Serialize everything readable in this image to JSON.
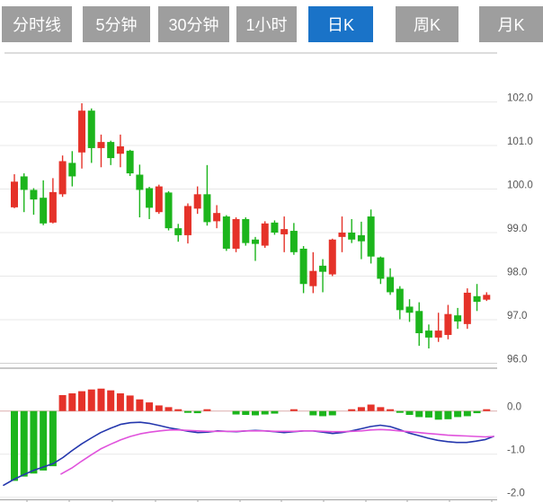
{
  "tabs": [
    {
      "label": "分时线",
      "active": false
    },
    {
      "label": "5分钟",
      "active": false
    },
    {
      "label": "30分钟",
      "active": false
    },
    {
      "label": "1小时",
      "active": false
    },
    {
      "label": "日K",
      "active": true
    },
    {
      "label": "周K",
      "active": false
    },
    {
      "label": "月K",
      "active": false
    }
  ],
  "colors": {
    "tab_bg": "#9e9e9e",
    "tab_active": "#1a73c8",
    "up": "#e53229",
    "down": "#1cb51c",
    "dif_line": "#2437ad",
    "dea_line": "#e052dc",
    "grid": "#e8e8e8",
    "grid_strong": "#b5b5b5",
    "zero_line": "#dcaeae",
    "axis_label": "#555555"
  },
  "chart_data": {
    "type": "candlestick",
    "title": "日K line chart with MACD",
    "price_axis": {
      "labels": [
        "102.0",
        "101.0",
        "100.0",
        "99.0",
        "98.0",
        "97.0",
        "96.0"
      ],
      "max": 102.0,
      "min": 96.0
    },
    "macd_axis": {
      "labels": [
        "0.0",
        "-1.0",
        "-2.0"
      ],
      "max": 0.0,
      "min": -2.0
    },
    "candles": [
      {
        "o": 99.58,
        "c": 100.17,
        "h": 100.34,
        "l": 99.56
      },
      {
        "o": 100.29,
        "c": 99.98,
        "h": 100.36,
        "l": 99.47
      },
      {
        "o": 99.98,
        "c": 99.76,
        "h": 100.02,
        "l": 99.41
      },
      {
        "o": 99.8,
        "c": 99.21,
        "h": 100.2,
        "l": 99.17
      },
      {
        "o": 99.23,
        "c": 99.93,
        "h": 100.25,
        "l": 99.21
      },
      {
        "o": 99.88,
        "c": 100.64,
        "h": 100.77,
        "l": 99.82
      },
      {
        "o": 100.6,
        "c": 100.29,
        "h": 100.87,
        "l": 100.06
      },
      {
        "o": 100.84,
        "c": 101.8,
        "h": 101.97,
        "l": 100.47
      },
      {
        "o": 101.8,
        "c": 100.94,
        "h": 101.85,
        "l": 100.6
      },
      {
        "o": 100.94,
        "c": 101.08,
        "h": 101.25,
        "l": 100.5
      },
      {
        "o": 101.08,
        "c": 100.71,
        "h": 101.11,
        "l": 100.55
      },
      {
        "o": 100.81,
        "c": 100.98,
        "h": 101.25,
        "l": 100.5
      },
      {
        "o": 100.88,
        "c": 100.36,
        "h": 100.9,
        "l": 100.3
      },
      {
        "o": 100.33,
        "c": 99.98,
        "h": 100.56,
        "l": 99.35
      },
      {
        "o": 100.02,
        "c": 99.57,
        "h": 100.05,
        "l": 99.31
      },
      {
        "o": 99.47,
        "c": 100.06,
        "h": 100.1,
        "l": 99.43
      },
      {
        "o": 99.92,
        "c": 99.1,
        "h": 99.95,
        "l": 99.05
      },
      {
        "o": 99.1,
        "c": 98.94,
        "h": 99.2,
        "l": 98.79
      },
      {
        "o": 98.94,
        "c": 99.61,
        "h": 99.67,
        "l": 98.75
      },
      {
        "o": 99.55,
        "c": 99.88,
        "h": 100.06,
        "l": 99.43
      },
      {
        "o": 99.88,
        "c": 99.24,
        "h": 100.55,
        "l": 99.16
      },
      {
        "o": 99.26,
        "c": 99.45,
        "h": 99.63,
        "l": 99.1
      },
      {
        "o": 99.37,
        "c": 98.63,
        "h": 99.4,
        "l": 98.58
      },
      {
        "o": 98.63,
        "c": 99.31,
        "h": 99.35,
        "l": 98.55
      },
      {
        "o": 99.31,
        "c": 98.76,
        "h": 99.35,
        "l": 98.7
      },
      {
        "o": 98.84,
        "c": 98.74,
        "h": 98.9,
        "l": 98.35
      },
      {
        "o": 98.7,
        "c": 99.21,
        "h": 99.26,
        "l": 98.65
      },
      {
        "o": 99.23,
        "c": 99.0,
        "h": 99.28,
        "l": 98.95
      },
      {
        "o": 98.96,
        "c": 99.08,
        "h": 99.37,
        "l": 98.55
      },
      {
        "o": 99.04,
        "c": 98.55,
        "h": 99.22,
        "l": 98.49
      },
      {
        "o": 98.63,
        "c": 97.82,
        "h": 98.69,
        "l": 97.61
      },
      {
        "o": 97.77,
        "c": 98.12,
        "h": 98.55,
        "l": 97.61
      },
      {
        "o": 98.24,
        "c": 98.1,
        "h": 98.39,
        "l": 97.63
      },
      {
        "o": 98.04,
        "c": 98.84,
        "h": 98.86,
        "l": 98.0
      },
      {
        "o": 98.9,
        "c": 99.0,
        "h": 99.37,
        "l": 98.55
      },
      {
        "o": 99.0,
        "c": 98.84,
        "h": 99.31,
        "l": 98.76
      },
      {
        "o": 98.94,
        "c": 98.8,
        "h": 99.25,
        "l": 98.39
      },
      {
        "o": 99.37,
        "c": 98.45,
        "h": 99.53,
        "l": 98.29
      },
      {
        "o": 98.43,
        "c": 97.94,
        "h": 98.45,
        "l": 97.82
      },
      {
        "o": 97.98,
        "c": 97.63,
        "h": 98.18,
        "l": 97.57
      },
      {
        "o": 97.71,
        "c": 97.22,
        "h": 97.77,
        "l": 97.01
      },
      {
        "o": 97.3,
        "c": 97.16,
        "h": 97.47,
        "l": 96.95
      },
      {
        "o": 97.2,
        "c": 96.69,
        "h": 97.4,
        "l": 96.4
      },
      {
        "o": 96.75,
        "c": 96.59,
        "h": 96.89,
        "l": 96.34
      },
      {
        "o": 96.59,
        "c": 96.75,
        "h": 97.16,
        "l": 96.49
      },
      {
        "o": 96.65,
        "c": 97.13,
        "h": 97.34,
        "l": 96.55
      },
      {
        "o": 97.1,
        "c": 96.96,
        "h": 97.27,
        "l": 96.79
      },
      {
        "o": 96.9,
        "c": 97.62,
        "h": 97.72,
        "l": 96.79
      },
      {
        "o": 97.54,
        "c": 97.41,
        "h": 97.82,
        "l": 97.2
      },
      {
        "o": 97.46,
        "c": 97.57,
        "h": 97.63,
        "l": 97.43
      }
    ],
    "macd_hist": [
      -1.62,
      -1.52,
      -1.45,
      -1.38,
      -1.28,
      0.37,
      0.41,
      0.46,
      0.5,
      0.52,
      0.48,
      0.41,
      0.36,
      0.27,
      0.2,
      0.13,
      0.09,
      0.02,
      -0.04,
      -0.05,
      0.02,
      0,
      0,
      -0.08,
      -0.09,
      -0.1,
      -0.08,
      -0.06,
      0,
      0.02,
      0,
      -0.1,
      -0.12,
      -0.1,
      0,
      0.03,
      0.09,
      0.15,
      0.09,
      0.02,
      -0.04,
      -0.09,
      -0.14,
      -0.15,
      -0.2,
      -0.19,
      -0.14,
      -0.12,
      -0.05,
      0.03
    ],
    "dif": [
      [
        4,
        -1.72
      ],
      [
        16,
        -1.58
      ],
      [
        27,
        -1.47
      ],
      [
        38,
        -1.37
      ],
      [
        48,
        -1.3
      ],
      [
        59,
        -1.22
      ],
      [
        70,
        -1.08
      ],
      [
        80,
        -0.92
      ],
      [
        91,
        -0.76
      ],
      [
        102,
        -0.62
      ],
      [
        112,
        -0.5
      ],
      [
        123,
        -0.4
      ],
      [
        134,
        -0.31
      ],
      [
        145,
        -0.27
      ],
      [
        156,
        -0.26
      ],
      [
        167,
        -0.29
      ],
      [
        178,
        -0.34
      ],
      [
        188,
        -0.39
      ],
      [
        199,
        -0.43
      ],
      [
        210,
        -0.47
      ],
      [
        220,
        -0.5
      ],
      [
        231,
        -0.49
      ],
      [
        242,
        -0.46
      ],
      [
        252,
        -0.47
      ],
      [
        263,
        -0.48
      ],
      [
        274,
        -0.46
      ],
      [
        284,
        -0.45
      ],
      [
        295,
        -0.46
      ],
      [
        306,
        -0.48
      ],
      [
        316,
        -0.5
      ],
      [
        327,
        -0.48
      ],
      [
        338,
        -0.46
      ],
      [
        348,
        -0.46
      ],
      [
        359,
        -0.49
      ],
      [
        370,
        -0.52
      ],
      [
        380,
        -0.5
      ],
      [
        391,
        -0.46
      ],
      [
        402,
        -0.41
      ],
      [
        412,
        -0.36
      ],
      [
        423,
        -0.33
      ],
      [
        434,
        -0.36
      ],
      [
        444,
        -0.43
      ],
      [
        455,
        -0.51
      ],
      [
        466,
        -0.57
      ],
      [
        476,
        -0.63
      ],
      [
        487,
        -0.68
      ],
      [
        498,
        -0.71
      ],
      [
        508,
        -0.73
      ],
      [
        519,
        -0.73
      ],
      [
        529,
        -0.7
      ],
      [
        540,
        -0.66
      ],
      [
        549,
        -0.59
      ]
    ],
    "dea": [
      [
        68,
        -1.46
      ],
      [
        80,
        -1.32
      ],
      [
        91,
        -1.16
      ],
      [
        102,
        -1.01
      ],
      [
        112,
        -0.88
      ],
      [
        123,
        -0.77
      ],
      [
        134,
        -0.67
      ],
      [
        145,
        -0.59
      ],
      [
        156,
        -0.53
      ],
      [
        167,
        -0.49
      ],
      [
        178,
        -0.46
      ],
      [
        188,
        -0.44
      ],
      [
        199,
        -0.44
      ],
      [
        210,
        -0.45
      ],
      [
        220,
        -0.46
      ],
      [
        231,
        -0.47
      ],
      [
        242,
        -0.47
      ],
      [
        252,
        -0.47
      ],
      [
        263,
        -0.47
      ],
      [
        274,
        -0.46
      ],
      [
        284,
        -0.46
      ],
      [
        295,
        -0.46
      ],
      [
        306,
        -0.47
      ],
      [
        316,
        -0.47
      ],
      [
        327,
        -0.47
      ],
      [
        338,
        -0.46
      ],
      [
        348,
        -0.46
      ],
      [
        359,
        -0.47
      ],
      [
        370,
        -0.48
      ],
      [
        380,
        -0.48
      ],
      [
        391,
        -0.47
      ],
      [
        402,
        -0.46
      ],
      [
        412,
        -0.44
      ],
      [
        423,
        -0.43
      ],
      [
        434,
        -0.44
      ],
      [
        444,
        -0.46
      ],
      [
        455,
        -0.48
      ],
      [
        466,
        -0.5
      ],
      [
        476,
        -0.52
      ],
      [
        487,
        -0.54
      ],
      [
        498,
        -0.56
      ],
      [
        508,
        -0.57
      ],
      [
        519,
        -0.58
      ],
      [
        529,
        -0.59
      ],
      [
        540,
        -0.6
      ],
      [
        549,
        -0.59
      ]
    ],
    "x_ticks": [
      30,
      77,
      125,
      173,
      220,
      267,
      313,
      360,
      407,
      453,
      500,
      547
    ],
    "layout_hints": {
      "grid": true,
      "legend": "none"
    }
  }
}
